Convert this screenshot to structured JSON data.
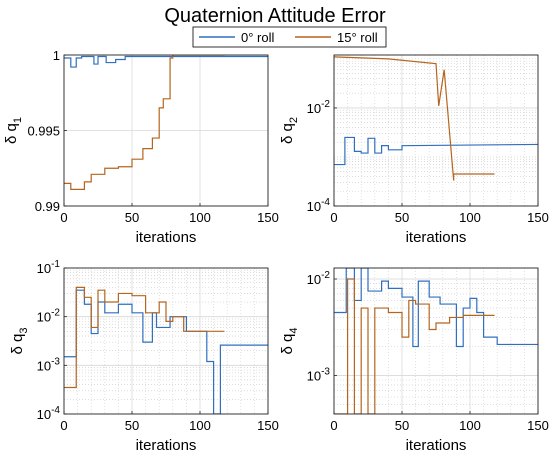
{
  "figure": {
    "title": "Quaternion Attitude Error",
    "legend": [
      {
        "label": "0° roll",
        "color": "#2E6FBF"
      },
      {
        "label": "15° roll",
        "color": "#B5651D"
      }
    ]
  },
  "chart_data": [
    {
      "type": "line",
      "ylabel_main": "δ q",
      "ylabel_sub": "1",
      "xlabel": "iterations",
      "xlim": [
        0,
        150
      ],
      "ylim": [
        0.99,
        1
      ],
      "yscale": "linear",
      "xticks": [
        0,
        50,
        100,
        150
      ],
      "xtick_labels": [
        "0",
        "50",
        "100",
        "150"
      ],
      "yticks": [
        0.99,
        0.995,
        1
      ],
      "ytick_labels": [
        "0.99",
        "0.995",
        "1"
      ],
      "grid": true,
      "series": [
        {
          "name": "0° roll",
          "color": "#2E6FBF",
          "x": [
            0,
            5,
            5,
            9,
            9,
            13,
            13,
            22,
            22,
            25,
            25,
            31,
            31,
            38,
            38,
            45,
            45,
            150
          ],
          "y": [
            0.9998,
            0.9998,
            0.9992,
            0.9992,
            0.9998,
            0.9998,
            0.9999,
            0.9999,
            0.9994,
            0.9994,
            0.9999,
            0.9999,
            0.9995,
            0.9995,
            0.9997,
            0.9997,
            0.9999,
            0.9999
          ]
        },
        {
          "name": "15° roll",
          "color": "#B5651D",
          "x": [
            0,
            5,
            5,
            15,
            15,
            20,
            20,
            30,
            30,
            40,
            40,
            50,
            50,
            58,
            58,
            65,
            65,
            70,
            70,
            73,
            73,
            78,
            78,
            80,
            80,
            118
          ],
          "y": [
            0.9915,
            0.9915,
            0.9911,
            0.9911,
            0.9916,
            0.9916,
            0.9921,
            0.9921,
            0.9925,
            0.9925,
            0.9926,
            0.9926,
            0.9931,
            0.9931,
            0.9938,
            0.9938,
            0.9945,
            0.9945,
            0.9965,
            0.9965,
            0.9971,
            0.9971,
            0.9998,
            0.9998,
            1.0,
            1.0
          ]
        }
      ]
    },
    {
      "type": "line",
      "ylabel_main": "δ q",
      "ylabel_sub": "2",
      "xlabel": "iterations",
      "xlim": [
        0,
        150
      ],
      "ylim": [
        0.0001,
        0.12
      ],
      "yscale": "log",
      "xticks": [
        0,
        50,
        100,
        150
      ],
      "xtick_labels": [
        "0",
        "50",
        "100",
        "150"
      ],
      "yticks": [
        0.0001,
        0.01
      ],
      "ytick_labels": [
        "10^-4",
        "10^-2"
      ],
      "grid": true,
      "series": [
        {
          "name": "0° roll",
          "color": "#2E6FBF",
          "x": [
            0,
            8,
            8,
            15,
            15,
            20,
            20,
            25,
            25,
            30,
            30,
            35,
            35,
            40,
            40,
            50,
            50,
            150
          ],
          "y": [
            0.0007,
            0.0007,
            0.0025,
            0.0025,
            0.0013,
            0.0013,
            0.0012,
            0.0012,
            0.0024,
            0.0024,
            0.0012,
            0.0012,
            0.0017,
            0.0017,
            0.0014,
            0.0014,
            0.0017,
            0.0018
          ]
        },
        {
          "name": "15° roll",
          "color": "#B5651D",
          "x": [
            0,
            40,
            40,
            75,
            75,
            77,
            77,
            81,
            81,
            88,
            88,
            118
          ],
          "y": [
            0.11,
            0.1,
            0.1,
            0.08,
            0.08,
            0.011,
            0.011,
            0.06,
            0.06,
            0.00033,
            0.00045,
            0.00045
          ]
        }
      ]
    },
    {
      "type": "line",
      "ylabel_main": "δ q",
      "ylabel_sub": "3",
      "xlabel": "iterations",
      "xlim": [
        0,
        150
      ],
      "ylim": [
        0.0001,
        0.1
      ],
      "yscale": "log",
      "xticks": [
        0,
        50,
        100,
        150
      ],
      "xtick_labels": [
        "0",
        "50",
        "100",
        "150"
      ],
      "yticks": [
        0.0001,
        0.001,
        0.01,
        0.1
      ],
      "ytick_labels": [
        "10^-4",
        "10^-3",
        "10^-2",
        "10^-1"
      ],
      "grid": true,
      "series": [
        {
          "name": "0° roll",
          "color": "#2E6FBF",
          "x": [
            0,
            9,
            9,
            15,
            15,
            20,
            20,
            25,
            25,
            30,
            30,
            40,
            40,
            50,
            50,
            58,
            58,
            65,
            65,
            68,
            68,
            78,
            78,
            90,
            90,
            105,
            105,
            110,
            110,
            115,
            115,
            150
          ],
          "y": [
            0.0015,
            0.0015,
            0.035,
            0.035,
            0.018,
            0.018,
            0.0045,
            0.0045,
            0.02,
            0.02,
            0.012,
            0.012,
            0.018,
            0.018,
            0.012,
            0.012,
            0.003,
            0.003,
            0.012,
            0.012,
            0.006,
            0.006,
            0.01,
            0.01,
            0.005,
            0.005,
            0.0012,
            0.0012,
            0.0001,
            0.0001,
            0.0026,
            0.0026
          ]
        },
        {
          "name": "15° roll",
          "color": "#B5651D",
          "x": [
            0,
            9,
            9,
            15,
            15,
            20,
            20,
            25,
            25,
            30,
            30,
            40,
            40,
            50,
            50,
            60,
            60,
            70,
            70,
            75,
            75,
            80,
            80,
            88,
            88,
            118
          ],
          "y": [
            0.00035,
            0.00035,
            0.04,
            0.04,
            0.025,
            0.025,
            0.006,
            0.006,
            0.035,
            0.035,
            0.02,
            0.02,
            0.03,
            0.03,
            0.027,
            0.027,
            0.012,
            0.012,
            0.02,
            0.02,
            0.008,
            0.008,
            0.01,
            0.01,
            0.005,
            0.005
          ]
        }
      ]
    },
    {
      "type": "line",
      "ylabel_main": "δ q",
      "ylabel_sub": "4",
      "xlabel": "iterations",
      "xlim": [
        0,
        150
      ],
      "ylim": [
        0.0004,
        0.013
      ],
      "yscale": "log",
      "xticks": [
        0,
        50,
        100,
        150
      ],
      "xtick_labels": [
        "0",
        "50",
        "100",
        "150"
      ],
      "yticks": [
        0.001,
        0.01
      ],
      "ytick_labels": [
        "10^-3",
        "10^-2"
      ],
      "grid": true,
      "series": [
        {
          "name": "0° roll",
          "color": "#2E6FBF",
          "x": [
            0,
            9,
            9,
            15,
            15,
            20,
            20,
            25,
            25,
            35,
            35,
            40,
            40,
            50,
            50,
            58,
            58,
            62,
            62,
            70,
            70,
            78,
            78,
            90,
            90,
            95,
            95,
            100,
            100,
            105,
            105,
            110,
            110,
            120,
            120,
            150
          ],
          "y": [
            0.0045,
            0.0045,
            0.013,
            0.013,
            0.006,
            0.006,
            0.013,
            0.013,
            0.0075,
            0.0075,
            0.0095,
            0.0095,
            0.008,
            0.008,
            0.0065,
            0.0065,
            0.002,
            0.002,
            0.0095,
            0.0095,
            0.0065,
            0.0065,
            0.0055,
            0.0055,
            0.002,
            0.002,
            0.005,
            0.005,
            0.0063,
            0.0063,
            0.0045,
            0.0045,
            0.0025,
            0.0025,
            0.0021,
            0.0021
          ]
        },
        {
          "name": "15° roll",
          "color": "#B5651D",
          "x": [
            0,
            10,
            10,
            15,
            15,
            20,
            20,
            25,
            25,
            30,
            30,
            40,
            40,
            50,
            50,
            55,
            55,
            60,
            60,
            70,
            70,
            75,
            75,
            85,
            85,
            95,
            95,
            118
          ],
          "y": [
            0.0004,
            0.0004,
            0.01,
            0.01,
            0.0004,
            0.0004,
            0.005,
            0.005,
            0.0004,
            0.0004,
            0.005,
            0.005,
            0.0045,
            0.0045,
            0.0025,
            0.0025,
            0.006,
            0.006,
            0.0055,
            0.0055,
            0.003,
            0.003,
            0.0035,
            0.0035,
            0.004,
            0.004,
            0.0042,
            0.0042
          ]
        }
      ]
    }
  ]
}
